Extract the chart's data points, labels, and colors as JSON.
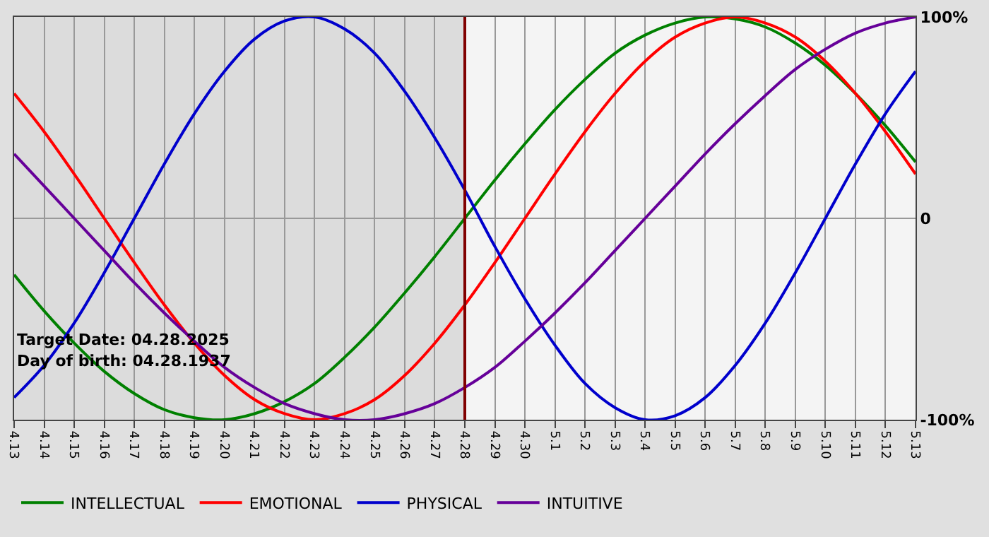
{
  "chart_data": {
    "type": "line",
    "x": [
      "--04-13",
      "--04-14",
      "--04-15",
      "--04-16",
      "--04-17",
      "--04-18",
      "--04-19",
      "--04-20",
      "--04-21",
      "--04-22",
      "--04-23",
      "--04-24",
      "--04-25",
      "--04-26",
      "--04-27",
      "--04-28",
      "--04-29",
      "--04-30",
      "--05-01",
      "--05-02",
      "--05-03",
      "--05-04",
      "--05-05",
      "--05-06",
      "--05-07",
      "--05-08",
      "--05-09",
      "--05-10",
      "--05-11",
      "--05-12",
      "--05-13"
    ],
    "series": [
      {
        "name": "INTELLECTUAL",
        "color": "#008000",
        "values": [
          -28,
          -46,
          -62,
          -76,
          -87,
          -95,
          -99,
          -100,
          -97,
          -91,
          -82,
          -69,
          -54,
          -37,
          -19,
          0,
          19,
          37,
          54,
          69,
          82,
          91,
          97,
          100,
          99,
          95,
          87,
          76,
          62,
          46,
          28
        ]
      },
      {
        "name": "EMOTIONAL",
        "color": "#ff0000",
        "values": [
          62,
          43,
          22,
          0,
          -22,
          -43,
          -62,
          -78,
          -90,
          -97,
          -100,
          -97,
          -90,
          -78,
          -62,
          -43,
          -22,
          0,
          22,
          43,
          62,
          78,
          90,
          97,
          100,
          97,
          90,
          78,
          62,
          43,
          22
        ]
      },
      {
        "name": "PHYSICAL",
        "color": "#0000cc",
        "values": [
          -89,
          -73,
          -52,
          -27,
          0,
          27,
          52,
          73,
          89,
          98,
          100,
          94,
          82,
          63,
          40,
          14,
          -14,
          -40,
          -63,
          -82,
          -94,
          -100,
          -98,
          -89,
          -73,
          -52,
          -27,
          0,
          27,
          52,
          73
        ]
      },
      {
        "name": "INTUITIVE",
        "color": "#660099",
        "values": [
          32,
          16,
          0,
          -16,
          -32,
          -47,
          -61,
          -74,
          -84,
          -92,
          -97,
          -100,
          -100,
          -97,
          -92,
          -84,
          -74,
          -61,
          -47,
          -32,
          -16,
          0,
          16,
          32,
          47,
          61,
          74,
          84,
          92,
          97,
          100
        ]
      }
    ],
    "xlim": [
      "--04-13",
      "--05-13"
    ],
    "xticks": [
      {
        "value": "--04-13",
        "label": "4.13"
      },
      {
        "value": "--04-14",
        "label": "4.14"
      },
      {
        "value": "--04-15",
        "label": "4.15"
      },
      {
        "value": "--04-16",
        "label": "4.16"
      },
      {
        "value": "--04-17",
        "label": "4.17"
      },
      {
        "value": "--04-18",
        "label": "4.18"
      },
      {
        "value": "--04-19",
        "label": "4.19"
      },
      {
        "value": "--04-20",
        "label": "4.20"
      },
      {
        "value": "--04-21",
        "label": "4.21"
      },
      {
        "value": "--04-22",
        "label": "4.22"
      },
      {
        "value": "--04-23",
        "label": "4.23"
      },
      {
        "value": "--04-24",
        "label": "4.24"
      },
      {
        "value": "--04-25",
        "label": "4.25"
      },
      {
        "value": "--04-26",
        "label": "4.26"
      },
      {
        "value": "--04-27",
        "label": "4.27"
      },
      {
        "value": "--04-28",
        "label": "4.28"
      },
      {
        "value": "--04-29",
        "label": "4.29"
      },
      {
        "value": "--04-30",
        "label": "4.30"
      },
      {
        "value": "--05-01",
        "label": "5.1"
      },
      {
        "value": "--05-02",
        "label": "5.2"
      },
      {
        "value": "--05-03",
        "label": "5.3"
      },
      {
        "value": "--05-04",
        "label": "5.4"
      },
      {
        "value": "--05-05",
        "label": "5.5"
      },
      {
        "value": "--05-06",
        "label": "5.6"
      },
      {
        "value": "--05-07",
        "label": "5.7"
      },
      {
        "value": "--05-08",
        "label": "5.8"
      },
      {
        "value": "--05-09",
        "label": "5.9"
      },
      {
        "value": "--05-10",
        "label": "5.10"
      },
      {
        "value": "--05-11",
        "label": "5.11"
      },
      {
        "value": "--05-12",
        "label": "5.12"
      },
      {
        "value": "--05-13",
        "label": "5.13"
      }
    ],
    "ylim": [
      -100,
      100
    ],
    "yticks": [
      {
        "value": -100,
        "label": "-100%"
      },
      0,
      {
        "value": 100,
        "label": "100%"
      }
    ],
    "grid": true,
    "legend": "bottom left",
    "ref_lines": [
      {
        "axis": "x",
        "value": "--04-28",
        "color": "#800000"
      }
    ],
    "bands": [
      {
        "axis": "x",
        "from": "--04-13",
        "to": "--04-28",
        "color": "#dcdcdc"
      }
    ],
    "annotations": [
      "Target Date: 04.28.2025",
      "Day of birth: 04.28.1937"
    ]
  }
}
